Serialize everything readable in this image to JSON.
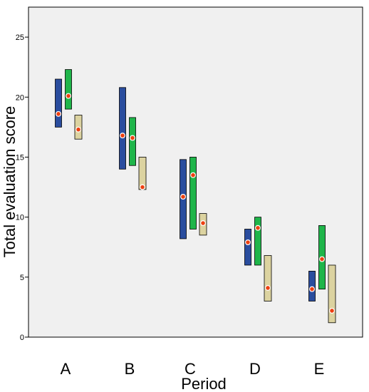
{
  "chart_data": {
    "type": "floating-bar",
    "xlabel": "Period",
    "ylabel": "Total  evaluation score",
    "ylim": [
      0,
      27.5
    ],
    "yticks": [
      0,
      5,
      10,
      15,
      20,
      25
    ],
    "grid": false,
    "categories": [
      "A",
      "B",
      "C",
      "D",
      "E"
    ],
    "series": [
      {
        "color": "#2a4d9e",
        "ranges": [
          [
            17.5,
            21.5
          ],
          [
            14.0,
            20.8
          ],
          [
            8.2,
            14.8
          ],
          [
            6.0,
            9.0
          ],
          [
            3.0,
            5.5
          ]
        ],
        "marker": [
          18.6,
          16.8,
          11.7,
          7.9,
          4.0
        ]
      },
      {
        "color": "#1fb54a",
        "ranges": [
          [
            19.0,
            22.3
          ],
          [
            14.3,
            18.3
          ],
          [
            9.0,
            15.0
          ],
          [
            6.0,
            10.0
          ],
          [
            4.0,
            9.3
          ]
        ],
        "marker": [
          20.1,
          16.6,
          13.5,
          9.1,
          6.5
        ]
      },
      {
        "color": "#dcd3a0",
        "ranges": [
          [
            16.5,
            18.5
          ],
          [
            12.3,
            15.0
          ],
          [
            8.5,
            10.3
          ],
          [
            3.0,
            6.8
          ],
          [
            1.2,
            6.0
          ]
        ],
        "marker": [
          17.3,
          12.5,
          9.5,
          4.1,
          2.2
        ]
      }
    ],
    "marker_color": "#ee4010"
  }
}
